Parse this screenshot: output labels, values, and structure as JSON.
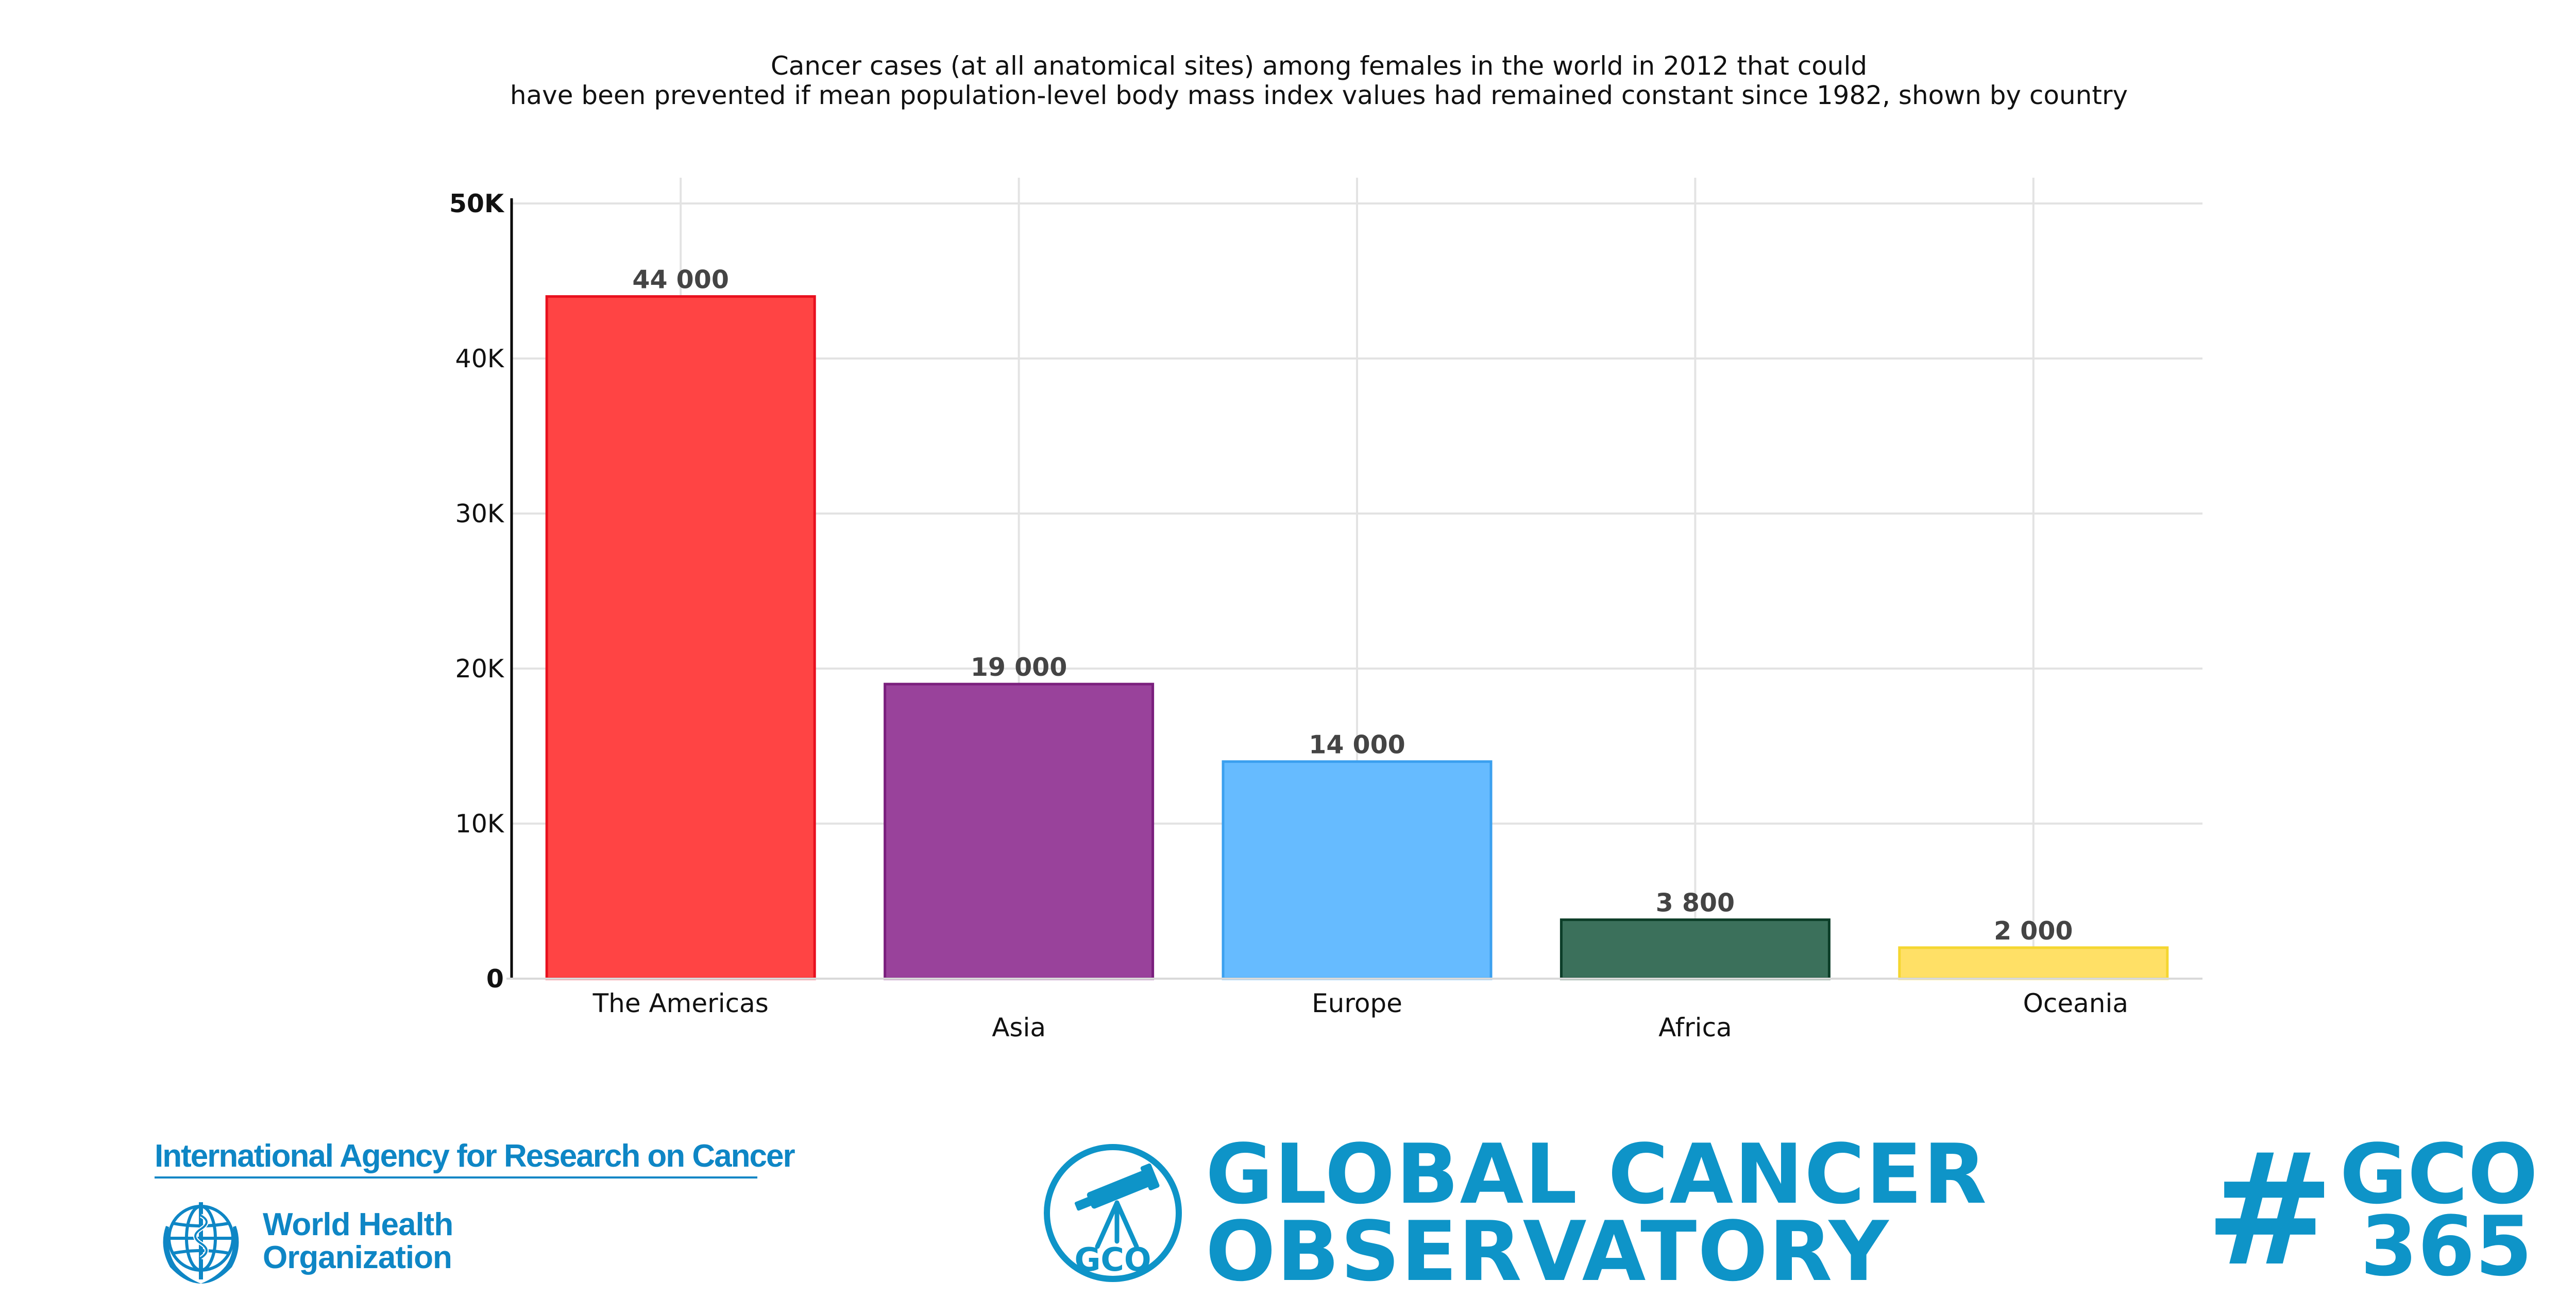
{
  "chart_data": {
    "type": "bar",
    "title_line1": "Cancer cases (at all anatomical sites) among females in the world in 2012 that could",
    "title_line2": "have been prevented if mean population-level body mass index values had remained constant since 1982, shown by country",
    "categories": [
      "The Americas",
      "Asia",
      "Europe",
      "Africa",
      "Oceania"
    ],
    "values": [
      44000,
      19000,
      14000,
      3800,
      2000
    ],
    "data_labels": [
      "44 000",
      "19 000",
      "14 000",
      "3 800",
      "2 000"
    ],
    "colors": [
      "#ff4444",
      "#99429b",
      "#66bbff",
      "#3b705b",
      "#ffe066"
    ],
    "border_colors": [
      "#e8101e",
      "#7a1f7d",
      "#3ba0ef",
      "#0c3d28",
      "#f5d630"
    ],
    "ylim": [
      0,
      50000
    ],
    "yticks": [
      0,
      10000,
      20000,
      30000,
      40000,
      50000
    ],
    "ytick_labels": [
      "0",
      "10K",
      "20K",
      "30K",
      "40K",
      "50K"
    ],
    "grid": true,
    "xlabel": "",
    "ylabel": ""
  },
  "footer": {
    "iarc_name": "International Agency for Research on Cancer",
    "who_line1": "World Health",
    "who_line2": "Organization",
    "gco_emblem_text": "GCO",
    "gco_line1": "GLOBAL CANCER",
    "gco_line2": "OBSERVATORY",
    "hashtag_line1": "GCO",
    "hashtag_line2": "365"
  },
  "colors": {
    "brand_blue": "#0e94c8",
    "iarc_blue": "#0e86c5"
  }
}
